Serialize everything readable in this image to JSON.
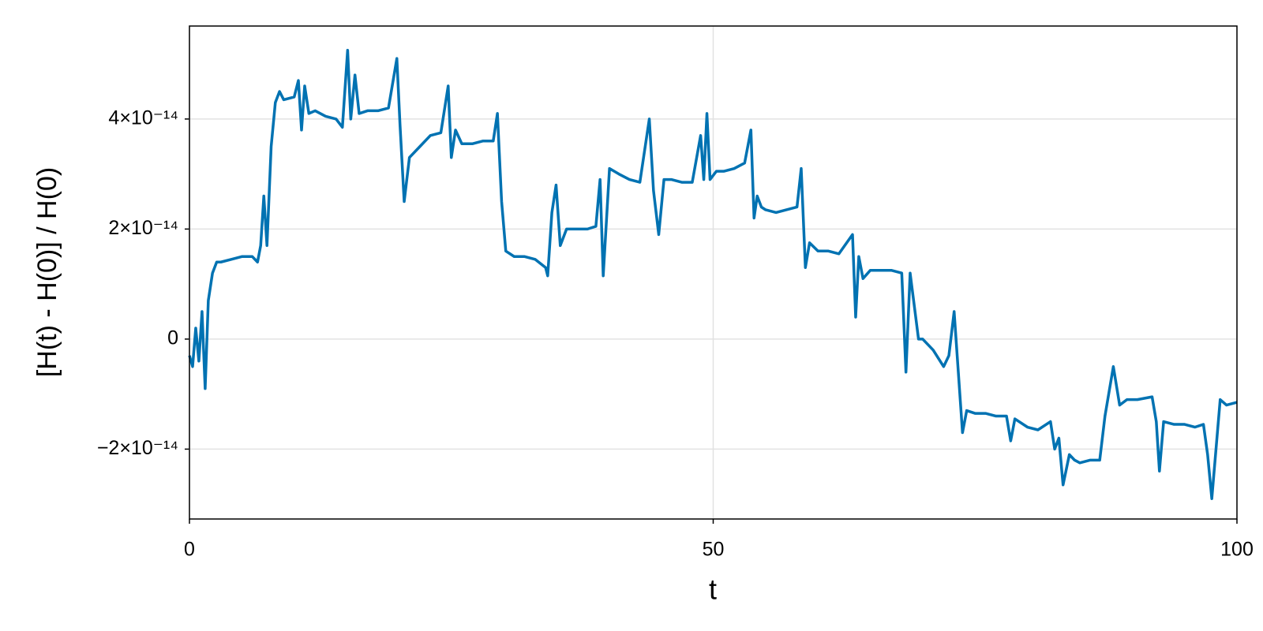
{
  "chart_data": {
    "type": "line",
    "xlabel": "t",
    "ylabel": "[H(t) - H(0)] / H(0)",
    "x": [
      0,
      0.3,
      0.6,
      0.9,
      1.2,
      1.5,
      1.8,
      2.2,
      2.6,
      3,
      4,
      5,
      6,
      6.5,
      6.8,
      7.1,
      7.4,
      7.8,
      8.2,
      8.6,
      9,
      10,
      10.4,
      10.7,
      11,
      11.4,
      12,
      13,
      14,
      14.6,
      15.1,
      15.4,
      15.8,
      16.2,
      17,
      18,
      19,
      19.8,
      20.1,
      20.5,
      21,
      22,
      23,
      24,
      24.7,
      25,
      25.4,
      26,
      27,
      28,
      29,
      29.4,
      29.8,
      30.2,
      31,
      32,
      33,
      34,
      34.2,
      34.6,
      35,
      35.4,
      36,
      37,
      38,
      38.8,
      39.2,
      39.5,
      40.1,
      41,
      42,
      43,
      43.9,
      44.3,
      44.8,
      45.3,
      46,
      47,
      48,
      48.8,
      49.1,
      49.4,
      49.7,
      50.3,
      51,
      52,
      53,
      53.6,
      53.9,
      54.2,
      54.6,
      55,
      56,
      57,
      58,
      58.4,
      58.8,
      59.2,
      60,
      61,
      62,
      63.3,
      63.6,
      63.9,
      64.3,
      65,
      66,
      67,
      68,
      68.4,
      68.8,
      69.6,
      70,
      71,
      72,
      72.5,
      73,
      73.4,
      73.8,
      74.2,
      75,
      76,
      77,
      78,
      78.4,
      78.8,
      80,
      81,
      82.2,
      82.6,
      83,
      83.4,
      84,
      84.5,
      85,
      86,
      86.9,
      87.4,
      88.2,
      88.8,
      89.5,
      90.5,
      91.9,
      92.3,
      92.6,
      93,
      94,
      95,
      96,
      96.8,
      97.2,
      97.6,
      98.4,
      99,
      100
    ],
    "values": [
      -3e-15,
      -5e-15,
      2e-15,
      -4e-15,
      5e-15,
      -9e-15,
      7e-15,
      1.2e-14,
      1.4e-14,
      1.4e-14,
      1.45e-14,
      1.5e-14,
      1.5e-14,
      1.4e-14,
      1.7e-14,
      2.6e-14,
      1.7e-14,
      3.5e-14,
      4.3e-14,
      4.5e-14,
      4.35e-14,
      4.4e-14,
      4.7e-14,
      3.8e-14,
      4.6e-14,
      4.1e-14,
      4.15e-14,
      4.05e-14,
      4e-14,
      3.85e-14,
      5.25e-14,
      4e-14,
      4.8e-14,
      4.1e-14,
      4.15e-14,
      4.15e-14,
      4.2e-14,
      5.1e-14,
      3.9e-14,
      2.5e-14,
      3.3e-14,
      3.5e-14,
      3.7e-14,
      3.75e-14,
      4.6e-14,
      3.3e-14,
      3.8e-14,
      3.55e-14,
      3.55e-14,
      3.6e-14,
      3.6e-14,
      4.1e-14,
      2.5e-14,
      1.6e-14,
      1.5e-14,
      1.5e-14,
      1.45e-14,
      1.3e-14,
      1.15e-14,
      2.3e-14,
      2.8e-14,
      1.7e-14,
      2e-14,
      2e-14,
      2e-14,
      2.05e-14,
      2.9e-14,
      1.15e-14,
      3.1e-14,
      3e-14,
      2.9e-14,
      2.85e-14,
      4e-14,
      2.7e-14,
      1.9e-14,
      2.9e-14,
      2.9e-14,
      2.85e-14,
      2.85e-14,
      3.7e-14,
      2.9e-14,
      4.1e-14,
      2.9e-14,
      3.05e-14,
      3.05e-14,
      3.1e-14,
      3.2e-14,
      3.8e-14,
      2.2e-14,
      2.6e-14,
      2.4e-14,
      2.35e-14,
      2.3e-14,
      2.35e-14,
      2.4e-14,
      3.1e-14,
      1.3e-14,
      1.75e-14,
      1.6e-14,
      1.6e-14,
      1.55e-14,
      1.9e-14,
      4e-15,
      1.5e-14,
      1.1e-14,
      1.25e-14,
      1.25e-14,
      1.25e-14,
      1.2e-14,
      -6e-15,
      1.2e-14,
      0,
      0,
      -2e-15,
      -5e-15,
      -3e-15,
      5e-15,
      -6e-15,
      -1.7e-14,
      -1.3e-14,
      -1.35e-14,
      -1.35e-14,
      -1.4e-14,
      -1.4e-14,
      -1.85e-14,
      -1.45e-14,
      -1.6e-14,
      -1.65e-14,
      -1.5e-14,
      -2e-14,
      -1.8e-14,
      -2.65e-14,
      -2.1e-14,
      -2.2e-14,
      -2.25e-14,
      -2.2e-14,
      -2.2e-14,
      -1.4e-14,
      -5e-15,
      -1.2e-14,
      -1.1e-14,
      -1.1e-14,
      -1.05e-14,
      -1.5e-14,
      -2.4e-14,
      -1.5e-14,
      -1.55e-14,
      -1.55e-14,
      -1.6e-14,
      -1.55e-14,
      -2.1e-14,
      -2.9e-14,
      -1.1e-14,
      -1.2e-14,
      -1.15e-14
    ],
    "color": "#0072b2",
    "xlim": [
      0,
      100
    ],
    "xticks": [
      0,
      50,
      100
    ],
    "ylim": [
      -3.27e-14,
      5.69e-14
    ],
    "yticks": [
      {
        "value": -2e-14,
        "label": "−2×10⁻¹⁴"
      },
      0,
      {
        "value": 2e-14,
        "label": "2×10⁻¹⁴"
      },
      {
        "value": 4e-14,
        "label": "4×10⁻¹⁴"
      }
    ],
    "grid": true
  }
}
